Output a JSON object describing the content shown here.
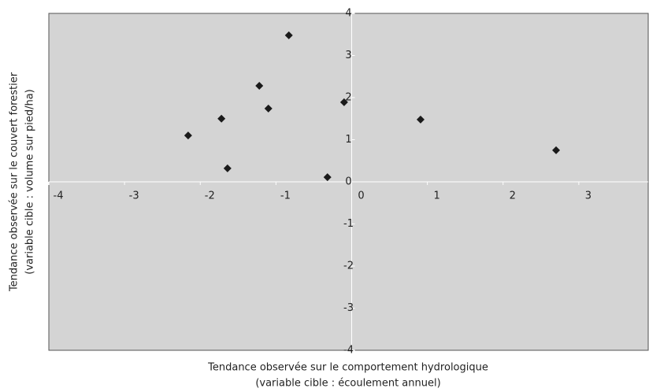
{
  "chart_data": {
    "type": "scatter",
    "xlabel": [
      "Tendance observée sur le comportement hydrologique",
      "(variable cible : écoulement annuel)"
    ],
    "ylabel": [
      "Tendance observée sur le couvert forestier",
      "(variable cible : volume sur pied/ha)"
    ],
    "x": [
      -2.16,
      -1.72,
      -1.64,
      -1.22,
      -1.1,
      -0.83,
      -0.32,
      -0.1,
      0.91,
      2.7
    ],
    "values": [
      1.1,
      1.5,
      0.32,
      2.28,
      1.74,
      3.48,
      0.11,
      1.89,
      1.48,
      0.75
    ],
    "color": "#1a1a1a",
    "xlim": [
      -4,
      4
    ],
    "xticks": [
      -4,
      -3,
      -2,
      -1,
      0,
      1,
      2,
      3
    ],
    "ylim": [
      -4,
      4
    ],
    "yticks": [
      -4,
      -3,
      -2,
      -1,
      0,
      1,
      2,
      3,
      4
    ],
    "background": "#d4d4d4"
  }
}
